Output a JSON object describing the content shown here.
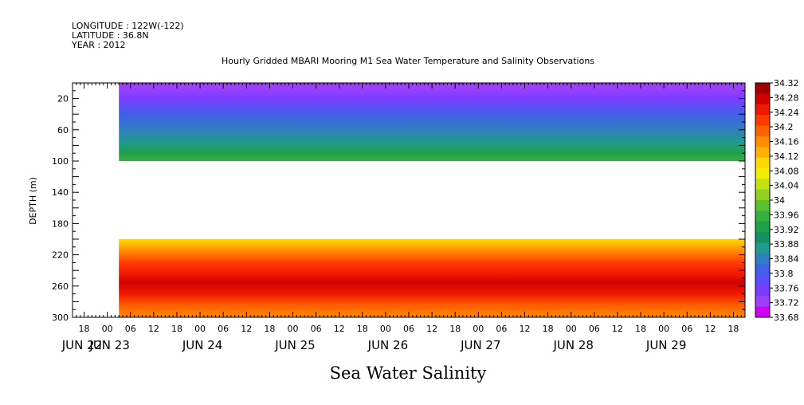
{
  "meta": {
    "longitude": "LONGITUDE : 122W(-122)",
    "latitude": "LATITUDE : 36.8N",
    "year": "YEAR : 2012"
  },
  "chart_data": {
    "type": "heatmap",
    "title": "Hourly Gridded MBARI Mooring M1 Sea Water Temperature and Salinity Observations",
    "subtitle": "Sea Water Salinity",
    "ylabel": "DEPTH (m)",
    "xlabel": "",
    "y_reversed": true,
    "ylim": [
      300,
      0
    ],
    "y_ticks": [
      "20",
      "60",
      "100",
      "140",
      "180",
      "220",
      "260",
      "300"
    ],
    "y_tick_values": [
      20,
      60,
      100,
      140,
      180,
      220,
      260,
      300
    ],
    "x_hour_ticks": [
      "18",
      "00",
      "06",
      "12",
      "18",
      "00",
      "06",
      "12",
      "18",
      "00",
      "06",
      "12",
      "18",
      "00",
      "06",
      "12",
      "18",
      "00",
      "06",
      "12",
      "18",
      "00",
      "06",
      "12",
      "18",
      "00",
      "06",
      "12",
      "18",
      "00",
      "06",
      "12",
      "18",
      "00",
      "06",
      "12",
      "18"
    ],
    "x_day_labels": [
      "JUN 22",
      "JUN 23",
      "JUN 24",
      "JUN 25",
      "JUN 26",
      "JUN 27",
      "JUN 28",
      "JUN 29"
    ],
    "x_start": "2012-06-22T15:00",
    "x_end": "2012-06-29T21:00",
    "data_start": "2012-06-23T03:00",
    "depth_layers": [
      {
        "top": 0,
        "bottom": 100,
        "levels_by_depth": [
          {
            "depth": 5,
            "salinity": 33.73
          },
          {
            "depth": 20,
            "salinity": 33.76
          },
          {
            "depth": 40,
            "salinity": 33.8
          },
          {
            "depth": 60,
            "salinity": 33.85
          },
          {
            "depth": 75,
            "salinity": 33.88
          },
          {
            "depth": 90,
            "salinity": 33.93
          },
          {
            "depth": 100,
            "salinity": 33.97
          }
        ]
      },
      {
        "top": 200,
        "bottom": 300,
        "levels_by_depth": [
          {
            "depth": 200,
            "salinity": 34.1
          },
          {
            "depth": 215,
            "salinity": 34.16
          },
          {
            "depth": 230,
            "salinity": 34.21
          },
          {
            "depth": 245,
            "salinity": 34.25
          },
          {
            "depth": 255,
            "salinity": 34.27
          },
          {
            "depth": 270,
            "salinity": 34.24
          },
          {
            "depth": 285,
            "salinity": 34.2
          },
          {
            "depth": 300,
            "salinity": 34.17
          }
        ]
      }
    ],
    "colorbar": {
      "labels": [
        "34.32",
        "34.28",
        "34.24",
        "34.2",
        "34.16",
        "34.12",
        "34.08",
        "34.04",
        "34",
        "33.96",
        "33.92",
        "33.88",
        "33.84",
        "33.8",
        "33.76",
        "33.72",
        "33.68"
      ],
      "min": 33.68,
      "max": 34.32,
      "colors": [
        "#d000f0",
        "#a040ff",
        "#7a3cff",
        "#5a4cff",
        "#4060e8",
        "#2f7fc0",
        "#1f9a90",
        "#129060",
        "#20a048",
        "#38b040",
        "#5cc030",
        "#90d020",
        "#c4e010",
        "#f0f000",
        "#ffd800",
        "#ffb000",
        "#ff8c00",
        "#ff6000",
        "#ff3a00",
        "#f01800",
        "#d00000",
        "#a00000"
      ]
    }
  }
}
